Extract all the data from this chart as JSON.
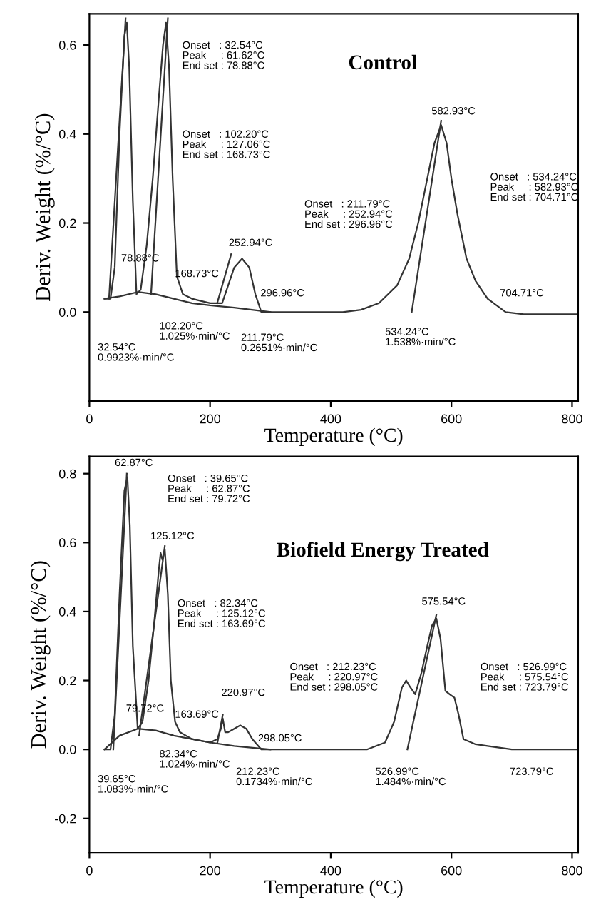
{
  "chart_data": [
    {
      "type": "line",
      "title": "Control",
      "xlabel": "Temperature (°C)",
      "ylabel": "Deriv. Weight (%/°C)",
      "xlim": [
        0,
        810
      ],
      "ylim": [
        -0.2,
        0.67
      ],
      "xticks": [
        0,
        200,
        400,
        600,
        800
      ],
      "yticks": [
        {
          "value": 0,
          "label": "0.0"
        },
        0.2,
        0.4,
        0.6
      ],
      "grid": false,
      "marker": "none",
      "line_style": "solid",
      "series": [
        {
          "color": "#333333",
          "x": [
            25,
            35,
            42,
            50,
            58,
            62,
            66,
            72,
            78,
            85,
            95,
            105,
            115,
            122,
            127,
            132,
            138,
            145,
            155,
            170,
            200,
            220,
            230,
            240,
            253,
            265,
            275,
            285,
            300,
            350,
            420,
            450,
            480,
            510,
            530,
            545,
            560,
            572,
            583,
            592,
            600,
            610,
            625,
            640,
            660,
            680,
            690,
            720,
            760,
            810
          ],
          "values": [
            0.03,
            0.03,
            0.1,
            0.4,
            0.62,
            0.65,
            0.55,
            0.25,
            0.04,
            0.05,
            0.15,
            0.3,
            0.48,
            0.6,
            0.65,
            0.55,
            0.3,
            0.08,
            0.04,
            0.03,
            0.02,
            0.02,
            0.06,
            0.1,
            0.12,
            0.1,
            0.04,
            0.0,
            0.0,
            0.0,
            0.0,
            0.005,
            0.02,
            0.06,
            0.12,
            0.2,
            0.3,
            0.38,
            0.42,
            0.38,
            0.3,
            0.22,
            0.12,
            0.07,
            0.03,
            0.01,
            0.0,
            -0.005,
            -0.005,
            -0.005
          ]
        },
        {
          "color": "#333333",
          "x": [
            25,
            50,
            80,
            110,
            140,
            170,
            200,
            240,
            300
          ],
          "values": [
            0.03,
            0.035,
            0.045,
            0.04,
            0.03,
            0.02,
            0.015,
            0.01,
            0.0
          ]
        },
        {
          "color": "#333333",
          "x": [
            32.54,
            60
          ],
          "values": [
            0.03,
            0.66
          ]
        },
        {
          "color": "#333333",
          "x": [
            102.2,
            130
          ],
          "values": [
            0.04,
            0.66
          ]
        },
        {
          "color": "#333333",
          "x": [
            211.79,
            235
          ],
          "values": [
            0.02,
            0.13
          ]
        },
        {
          "color": "#333333",
          "x": [
            534.24,
            583
          ],
          "values": [
            0.0,
            0.43
          ]
        }
      ],
      "annotations": [
        "Onset   : 32.54°C\nPeak     : 61.62°C\nEnd set : 78.88°C",
        "Onset   : 102.20°C\nPeak     : 127.06°C\nEnd set : 168.73°C",
        "Onset   : 211.79°C\nPeak     : 252.94°C\nEnd set : 296.96°C",
        "Onset   : 534.24°C\nPeak     : 582.93°C\nEnd set : 704.71°C",
        "582.93°C",
        "78.88°C",
        "168.73°C",
        "252.94°C",
        "296.96°C",
        "704.71°C",
        "102.20°C\n1.025%·min/°C",
        "32.54°C\n0.9923%·min/°C",
        "211.79°C\n0.2651%·min/°C",
        "534.24°C\n1.538%·min/°C"
      ]
    },
    {
      "type": "line",
      "title": "Biofield Energy Treated",
      "xlabel": "Temperature (°C)",
      "ylabel": "Deriv. Weight (%/°C)",
      "xlim": [
        0,
        810
      ],
      "ylim": [
        -0.3,
        0.85
      ],
      "xticks": [
        0,
        200,
        400,
        600,
        800
      ],
      "yticks": [
        -0.2,
        {
          "value": 0,
          "label": "0.0"
        },
        0.2,
        0.4,
        0.6,
        0.8
      ],
      "grid": false,
      "marker": "none",
      "line_style": "solid",
      "series": [
        {
          "color": "#333333",
          "x": [
            25,
            35,
            42,
            50,
            58,
            63,
            67,
            72,
            80,
            88,
            98,
            108,
            115,
            118,
            121,
            125,
            130,
            135,
            142,
            150,
            170,
            200,
            212,
            218,
            221,
            225,
            230,
            240,
            250,
            260,
            270,
            285,
            300,
            400,
            460,
            490,
            505,
            518,
            525,
            532,
            540,
            550,
            560,
            568,
            575,
            582,
            590,
            597,
            605,
            612,
            620,
            640,
            660,
            700,
            760,
            810
          ],
          "values": [
            0.0,
            0.0,
            0.1,
            0.45,
            0.75,
            0.79,
            0.65,
            0.3,
            0.06,
            0.08,
            0.2,
            0.38,
            0.52,
            0.57,
            0.55,
            0.58,
            0.45,
            0.2,
            0.08,
            0.05,
            0.03,
            0.02,
            0.03,
            0.06,
            0.09,
            0.05,
            0.05,
            0.06,
            0.07,
            0.06,
            0.03,
            0.0,
            0.0,
            0.0,
            0.0,
            0.02,
            0.08,
            0.18,
            0.2,
            0.18,
            0.16,
            0.22,
            0.3,
            0.36,
            0.38,
            0.32,
            0.17,
            0.16,
            0.15,
            0.1,
            0.03,
            0.015,
            0.01,
            0.0,
            0.0,
            0.0
          ]
        },
        {
          "color": "#333333",
          "x": [
            25,
            50,
            80,
            110,
            140,
            170,
            200,
            240,
            300
          ],
          "values": [
            0.0,
            0.04,
            0.06,
            0.055,
            0.04,
            0.03,
            0.02,
            0.01,
            0.0
          ]
        },
        {
          "color": "#333333",
          "x": [
            39.65,
            62
          ],
          "values": [
            0.0,
            0.8
          ]
        },
        {
          "color": "#333333",
          "x": [
            82.34,
            125
          ],
          "values": [
            0.04,
            0.59
          ]
        },
        {
          "color": "#333333",
          "x": [
            212.23,
            221
          ],
          "values": [
            0.02,
            0.1
          ]
        },
        {
          "color": "#333333",
          "x": [
            526.99,
            575
          ],
          "values": [
            0.0,
            0.39
          ]
        }
      ],
      "annotations": [
        "62.87°C",
        "Onset   : 39.65°C\nPeak     : 62.87°C\nEnd set : 79.72°C",
        "125.12°C",
        "Onset   : 82.34°C\nPeak     : 125.12°C\nEnd set : 163.69°C",
        "Onset   : 212.23°C\nPeak     : 220.97°C\nEnd set : 298.05°C",
        "575.54°C",
        "Onset   : 526.99°C\nPeak     : 575.54°C\nEnd set : 723.79°C",
        "220.97°C",
        "79.72°C",
        "163.69°C",
        "298.05°C",
        "82.34°C\n1.024%·min/°C",
        "39.65°C\n1.083%·min/°C",
        "212.23°C\n0.1734%·min/°C",
        "526.99°C\n1.484%·min/°C",
        "723.79°C"
      ]
    }
  ]
}
